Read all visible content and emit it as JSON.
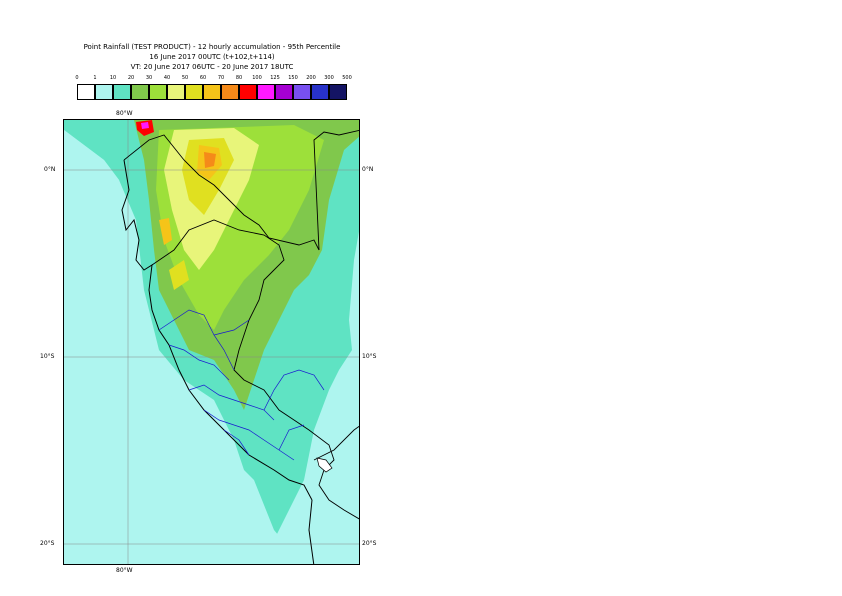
{
  "header": {
    "line1": "Point Rainfall (TEST PRODUCT) - 12 hourly accumulation - 95th Percentile",
    "line2": "16 June 2017 00UTC (t+102,t+114)",
    "line3": "VT: 20 June 2017 06UTC - 20 June 2017 18UTC"
  },
  "legend": {
    "ticks": [
      "0",
      "1",
      "10",
      "20",
      "30",
      "40",
      "50",
      "60",
      "70",
      "80",
      "100",
      "125",
      "150",
      "200",
      "300",
      "500"
    ],
    "colors": [
      "#ffffff",
      "#aef5ef",
      "#5fe3c3",
      "#80c84c",
      "#9de03a",
      "#e8f57a",
      "#e0e020",
      "#f5c419",
      "#f58a19",
      "#ff0000",
      "#ff19ff",
      "#a500d2",
      "#7850f0",
      "#2832c8",
      "#141464"
    ]
  },
  "map": {
    "lon_top": "80°W",
    "lon_bottom": "80°W",
    "lat_left": [
      "0°N",
      "10°S",
      "20°S"
    ],
    "lat_right": [
      "0°N",
      "10°S",
      "20°S"
    ]
  }
}
